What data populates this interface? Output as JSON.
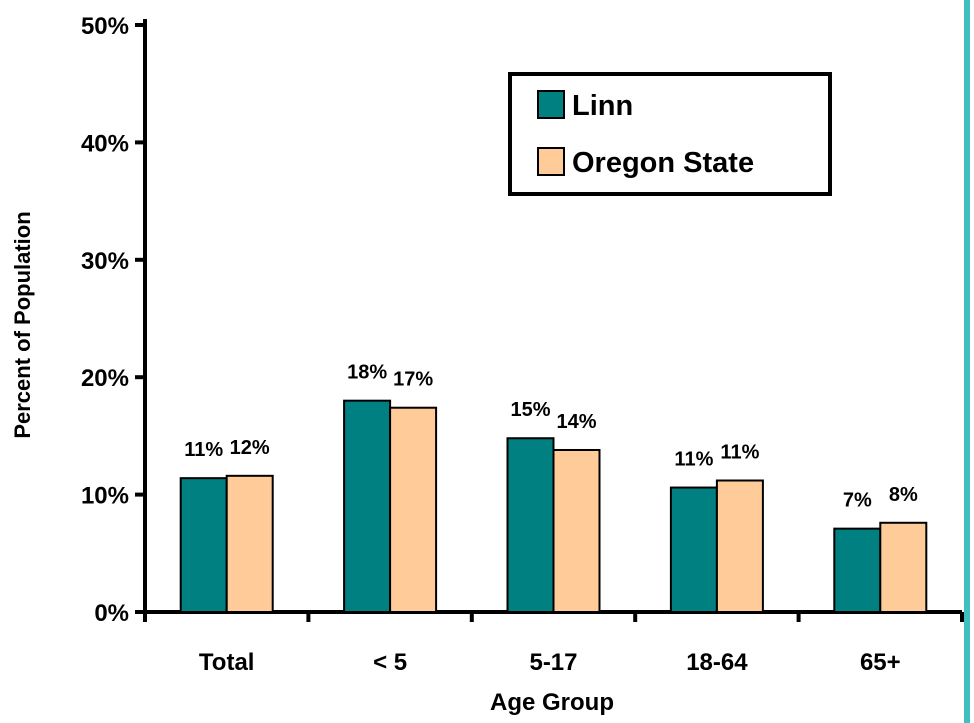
{
  "colors": {
    "linn": "#008080",
    "oregon": "#ffcc99",
    "axis": "#000000",
    "edge_accent": "#3fbfbf"
  },
  "chart_data": {
    "type": "bar",
    "title": "",
    "xlabel": "Age Group",
    "ylabel": "Percent of Population",
    "categories": [
      "Total",
      "< 5",
      "5-17",
      "18-64",
      "65+"
    ],
    "ylim": [
      0,
      50
    ],
    "yticks": [
      "0%",
      "10%",
      "20%",
      "30%",
      "40%",
      "50%"
    ],
    "series": [
      {
        "name": "Linn",
        "values": [
          11.4,
          18.0,
          14.8,
          10.6,
          7.1
        ],
        "labels": [
          "11%",
          "18%",
          "15%",
          "11%",
          "7%"
        ]
      },
      {
        "name": "Oregon State",
        "values": [
          11.6,
          17.4,
          13.8,
          11.2,
          7.6
        ],
        "labels": [
          "12%",
          "17%",
          "14%",
          "11%",
          "8%"
        ]
      }
    ],
    "legend_position": "top-right",
    "grid": false
  }
}
